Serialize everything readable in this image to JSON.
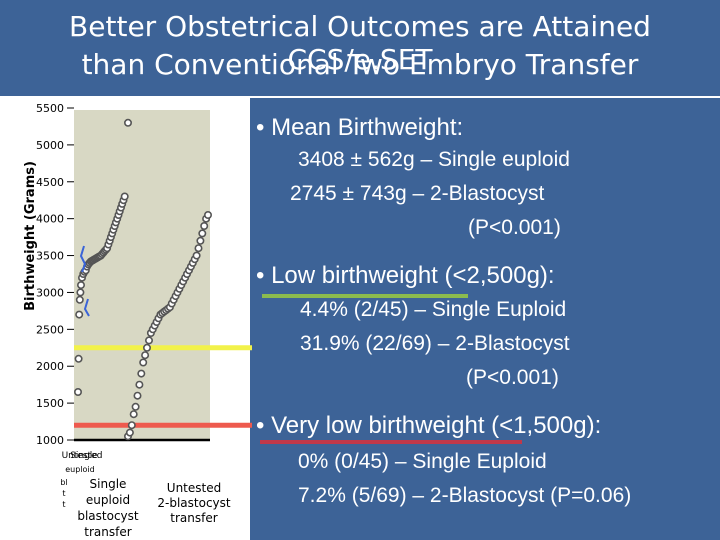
{
  "title": {
    "line1": "Better Obstetrical Outcomes are Attained CCS/e.SET",
    "line2": "than Conventional Two Embryo Transfer"
  },
  "colors": {
    "header_bg": "#3d6397",
    "plot_bg": "#d8d8c4",
    "yellow_line": "#f2f24a",
    "red_line": "#ee5a4e",
    "green_underline": "#8bbb4e",
    "red_underline": "#c0384a",
    "blue_marker": "#3a64d8"
  },
  "bullets": {
    "mean": {
      "heading": "• Mean Birthweight:",
      "lines": [
        "3408 ± 562g – Single euploid",
        "2745 ± 743g – 2-Blastocyst",
        "(P<0.001)"
      ]
    },
    "low": {
      "heading": "• Low birthweight (<2,500g):",
      "lines": [
        "4.4% (2/45) – Single Euploid",
        "31.9% (22/69) – 2-Blastocyst",
        "(P<0.001)"
      ]
    },
    "very_low": {
      "heading": "• Very low birthweight (<1,500g):",
      "lines": [
        "0% (0/45) – Single Euploid",
        "7.2% (5/69) – 2-Blastocyst (P=0.06)"
      ]
    }
  },
  "chart_data": {
    "type": "scatter",
    "ylabel": "Birthweight (Grams)",
    "xlabel": "",
    "ylim": [
      1000,
      5500
    ],
    "yticks": [
      "5500",
      "5000",
      "4500",
      "4000",
      "3500",
      "3000",
      "2500",
      "2000",
      "1500",
      "1000"
    ],
    "reference_lines": [
      {
        "name": "Low birthweight threshold",
        "y": 2250,
        "color": "#f2f24a"
      },
      {
        "name": "Very low birthweight threshold",
        "y": 1200,
        "color": "#ee5a4e"
      }
    ],
    "categories": [
      {
        "label_lines": [
          "Untested",
          "euploid"
        ],
        "overlap_label": "Single"
      },
      {
        "label_lines": [
          "Single",
          "euploid",
          "blastocyst",
          "transfer"
        ]
      },
      {
        "label_lines": [
          "Untested",
          "2-blastocyst",
          "transfer"
        ]
      }
    ],
    "clipped_label_fragments": [
      "bl",
      "t",
      "t"
    ],
    "series": [
      {
        "name": "Untested euploid",
        "values": [
          1650,
          2100,
          2700,
          2900,
          3000,
          3100
        ]
      },
      {
        "name": "Single euploid blastocyst transfer",
        "values": [
          3200,
          3250,
          3280,
          3300,
          3350,
          3380,
          3400,
          3420,
          3430,
          3440,
          3450,
          3460,
          3470,
          3480,
          3490,
          3500,
          3520,
          3540,
          3560,
          3580,
          3600,
          3650,
          3700,
          3750,
          3800,
          3850,
          3900,
          3950,
          4000,
          4050,
          4100,
          4150,
          4200,
          4250,
          4300,
          5300
        ]
      },
      {
        "name": "Untested 2-blastocyst transfer",
        "values": [
          1050,
          1100,
          1200,
          1350,
          1450,
          1600,
          1750,
          1900,
          2050,
          2150,
          2250,
          2350,
          2450,
          2500,
          2550,
          2600,
          2650,
          2700,
          2720,
          2740,
          2760,
          2780,
          2800,
          2850,
          2900,
          2950,
          3000,
          3050,
          3100,
          3150,
          3200,
          3250,
          3300,
          3350,
          3400,
          3450,
          3500,
          3600,
          3700,
          3800,
          3900,
          4000,
          4050
        ]
      }
    ]
  }
}
